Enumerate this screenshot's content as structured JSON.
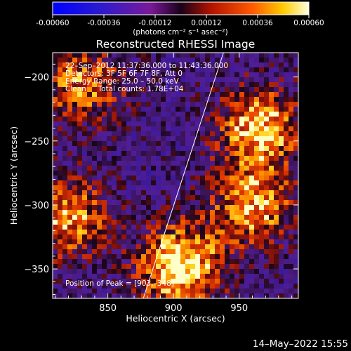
{
  "colorbar": {
    "ticks": [
      "-0.00060",
      "-0.00036",
      "-0.00012",
      "0.00012",
      "0.00036",
      "0.00060"
    ],
    "unit_label": "(photons cm⁻² s⁻¹ asec⁻²)"
  },
  "footer_timestamp": "14–May–2022 15:55",
  "chart_data": {
    "type": "heatmap",
    "title": "Reconstructed RHESSI Image",
    "xlabel": "Heliocentric X (arcsec)",
    "ylabel": "Heliocentric Y (arcsec)",
    "xlim": [
      808,
      995
    ],
    "ylim": [
      -373,
      -181
    ],
    "xticks": [
      850,
      900,
      950
    ],
    "yticks": [
      -200,
      -250,
      -300,
      -350
    ],
    "colorscale_range": [
      -0.0006,
      0.0006
    ],
    "annotations": [
      "22–Sep–2012 11:37:36.000 to 11:43:36.000",
      "Detectors: 3F 5F 6F 7F 8F, Att 0",
      "Energy Range: 25.0 – 50.0 keV",
      "Clean     Total counts: 1.78E+04"
    ],
    "peak_label": "Position of Peak = [903,–348]",
    "limb_line": {
      "x": [
        877,
        938
      ],
      "y": [
        -373,
        -181
      ]
    },
    "bright_regions": [
      {
        "x": 905,
        "y": -348,
        "intensity": 1.0
      },
      {
        "x": 965,
        "y": -240,
        "intensity": 0.85
      },
      {
        "x": 960,
        "y": -300,
        "intensity": 0.75
      },
      {
        "x": 820,
        "y": -310,
        "intensity": 0.7
      },
      {
        "x": 830,
        "y": -205,
        "intensity": 0.65
      }
    ]
  }
}
